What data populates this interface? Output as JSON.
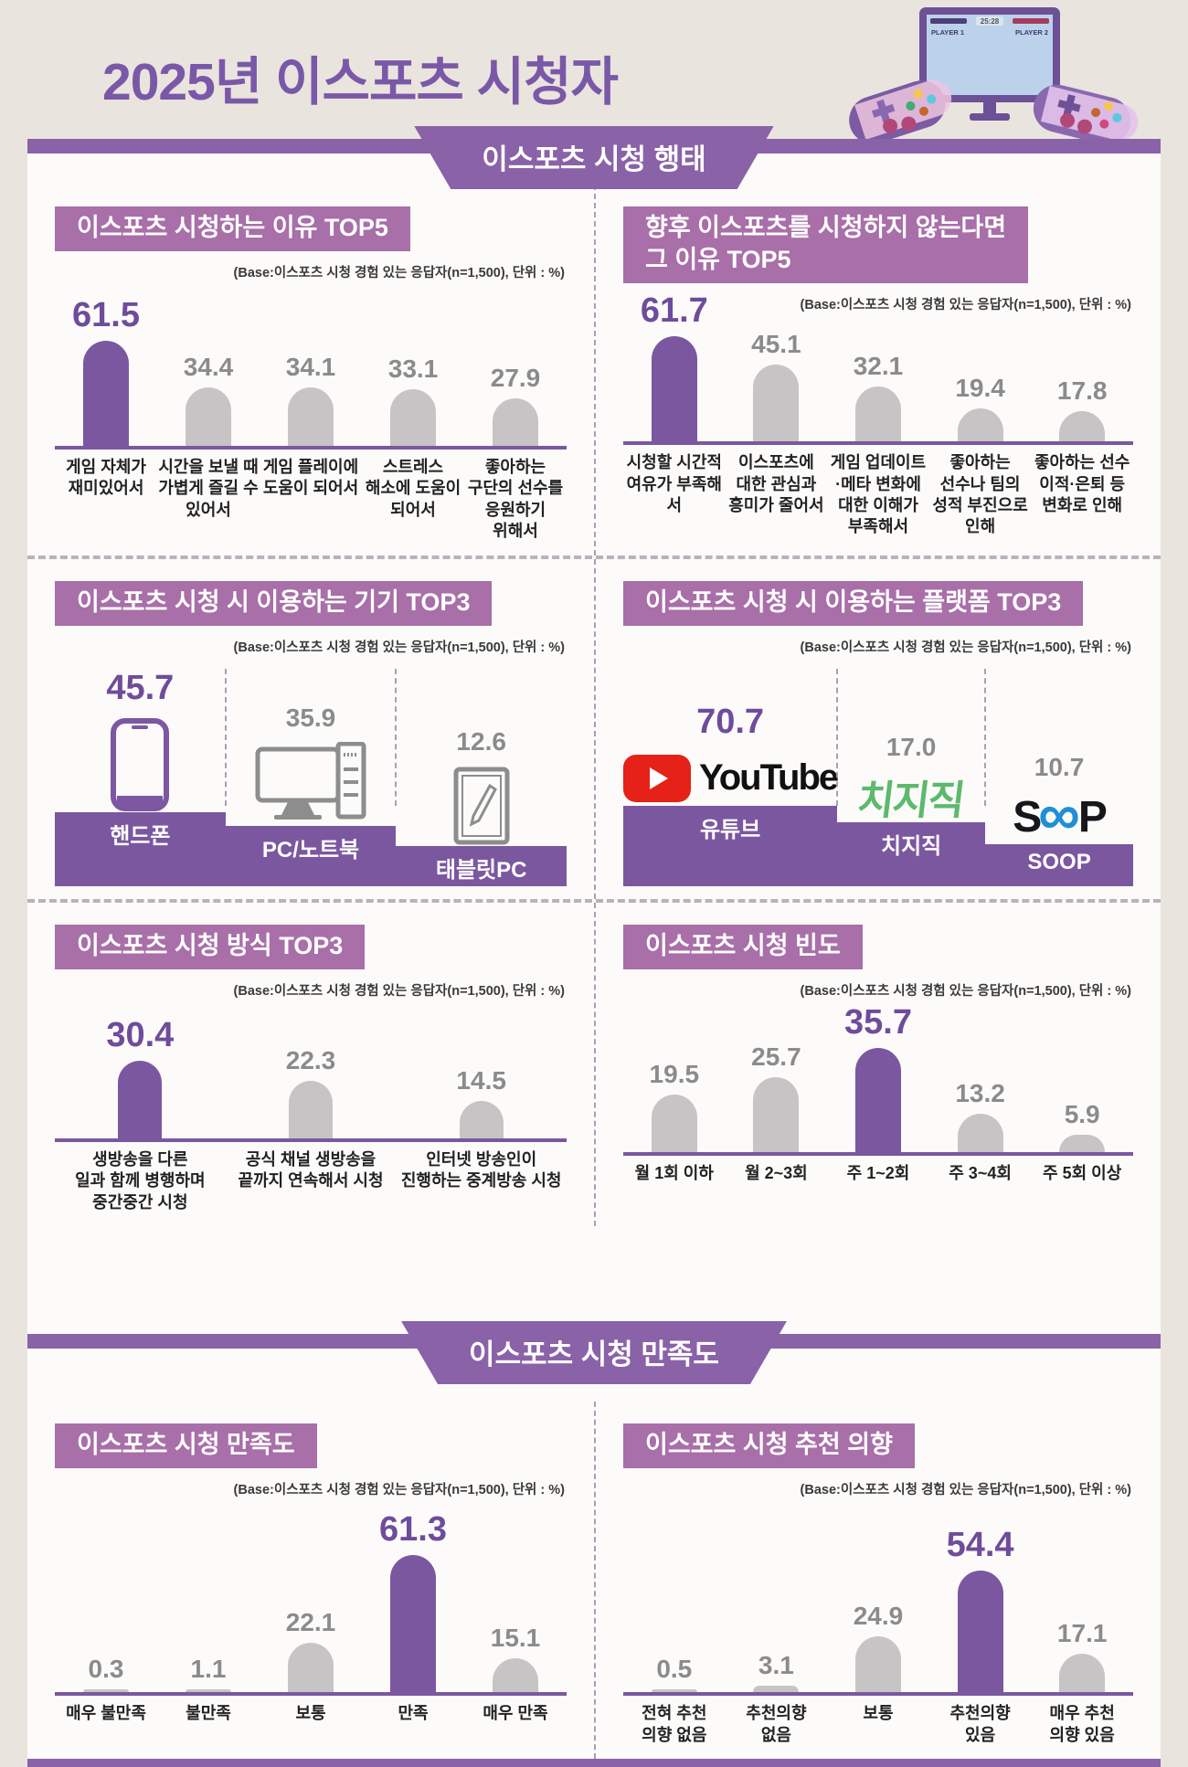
{
  "page": {
    "title": "2025년 이스포츠 시청자",
    "colors": {
      "background": "#eae4de",
      "accent_purple": "#7b57a0",
      "banner_purple": "#8a62a8",
      "title_box_mauve": "#a86fa8",
      "bar_gray": "#c6c4c4",
      "youtube_red": "#e62117",
      "chzzk_green": "#5db96d",
      "soop_blue": "#1f8fd6"
    }
  },
  "tv": {
    "player1": "PLAYER 1",
    "player2": "PLAYER 2",
    "timer": "25:28"
  },
  "sections": [
    {
      "banner": "이스포츠 시청 행태"
    },
    {
      "banner": "이스포츠 시청 만족도"
    }
  ],
  "base_note": "(Base:이스포츠 시청 경험 있는 응답자(n=1,500), 단위 : %)",
  "chart_data": [
    {
      "type": "bar",
      "title": "이스포츠 시청하는 이유 TOP5",
      "categories": [
        "게임 자체가\n재미있어서",
        "시간을 보낼 때\n가볍게 즐길 수\n있어서",
        "게임 플레이에\n도움이 되어서",
        "스트레스\n해소에 도움이\n되어서",
        "좋아하는\n구단의 선수를\n응원하기\n위해서"
      ],
      "values": [
        61.5,
        34.4,
        34.1,
        33.1,
        27.9
      ],
      "highlight_index": 0,
      "unit": "%",
      "ylim": [
        0,
        70
      ],
      "grid": false
    },
    {
      "type": "bar",
      "title": "향후 이스포츠를 시청하지 않는다면\n그 이유 TOP5",
      "categories": [
        "시청할 시간적\n여유가 부족해서",
        "이스포츠에\n대한 관심과\n흥미가 줄어서",
        "게임 업데이트\n·메타 변화에\n대한 이해가\n부족해서",
        "좋아하는\n선수나 팀의\n성적 부진으로\n인해",
        "좋아하는 선수\n이적·은퇴 등\n변화로 인해"
      ],
      "values": [
        61.7,
        45.1,
        32.1,
        19.4,
        17.8
      ],
      "highlight_index": 0,
      "unit": "%",
      "ylim": [
        0,
        70
      ],
      "grid": false
    },
    {
      "type": "bar",
      "title": "이스포츠 시청 시 이용하는 기기 TOP3",
      "categories": [
        "핸드폰",
        "PC/노트북",
        "태블릿PC"
      ],
      "values": [
        45.7,
        35.9,
        12.6
      ],
      "highlight_index": 0,
      "icons": [
        "smartphone-icon",
        "desktop-pc-icon",
        "tablet-pen-icon"
      ],
      "unit": "%",
      "grid": false
    },
    {
      "type": "bar",
      "title": "이스포츠 시청 시 이용하는 플랫폼 TOP3",
      "categories": [
        "유튜브",
        "치지직",
        "SOOP"
      ],
      "values": [
        70.7,
        17.0,
        10.7
      ],
      "highlight_index": 0,
      "icons": [
        "youtube-logo",
        "chzzk-logo",
        "soop-logo"
      ],
      "logo_text": [
        "YouTube",
        "치지직",
        "SOOP"
      ],
      "unit": "%",
      "grid": false
    },
    {
      "type": "bar",
      "title": "이스포츠 시청 방식 TOP3",
      "categories": [
        "생방송을 다른\n일과 함께 병행하며\n중간중간 시청",
        "공식 채널 생방송을\n끝까지 연속해서 시청",
        "인터넷 방송인이\n진행하는 중계방송 시청"
      ],
      "values": [
        30.4,
        22.3,
        14.5
      ],
      "highlight_index": 0,
      "unit": "%",
      "grid": false
    },
    {
      "type": "bar",
      "title": "이스포츠 시청 빈도",
      "categories": [
        "월 1회 이하",
        "월 2~3회",
        "주 1~2회",
        "주 3~4회",
        "주 5회 이상"
      ],
      "values": [
        19.5,
        25.7,
        35.7,
        13.2,
        5.9
      ],
      "highlight_index": 2,
      "unit": "%",
      "grid": false
    },
    {
      "type": "bar",
      "title": "이스포츠 시청 만족도",
      "categories": [
        "매우 불만족",
        "불만족",
        "보통",
        "만족",
        "매우 만족"
      ],
      "values": [
        0.3,
        1.1,
        22.1,
        61.3,
        15.1
      ],
      "highlight_index": 3,
      "unit": "%",
      "ylim": [
        0,
        70
      ],
      "grid": false
    },
    {
      "type": "bar",
      "title": "이스포츠 시청 추천 의향",
      "categories": [
        "전혀 추천\n의향 없음",
        "추천의향\n없음",
        "보통",
        "추천의향\n있음",
        "매우 추천\n의향 있음"
      ],
      "values": [
        0.5,
        3.1,
        24.9,
        54.4,
        17.1
      ],
      "highlight_index": 3,
      "unit": "%",
      "ylim": [
        0,
        70
      ],
      "grid": false
    }
  ]
}
